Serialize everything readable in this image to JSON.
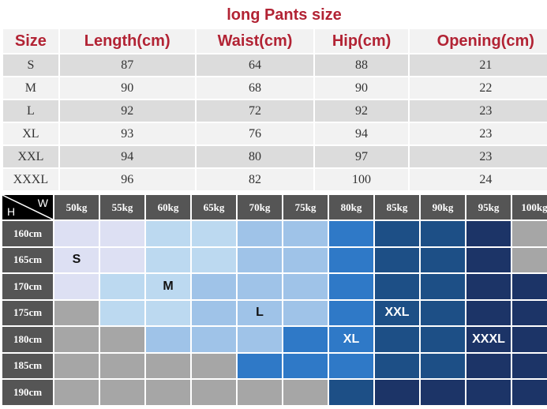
{
  "title": "long Pants size",
  "spec_table": {
    "headers": [
      "Size",
      "Length(cm)",
      "Waist(cm)",
      "Hip(cm)",
      "Opening(cm)"
    ],
    "rows": [
      [
        "S",
        "87",
        "64",
        "88",
        "21"
      ],
      [
        "M",
        "90",
        "68",
        "90",
        "22"
      ],
      [
        "L",
        "92",
        "72",
        "92",
        "23"
      ],
      [
        "XL",
        "93",
        "76",
        "94",
        "23"
      ],
      [
        "XXL",
        "94",
        "80",
        "97",
        "23"
      ],
      [
        "XXXL",
        "96",
        "82",
        "100",
        "24"
      ]
    ]
  },
  "fit_grid": {
    "corner_height_label": "H",
    "corner_weight_label": "W",
    "weights": [
      "50kg",
      "55kg",
      "60kg",
      "65kg",
      "70kg",
      "75kg",
      "80kg",
      "85kg",
      "90kg",
      "95kg",
      "100kg"
    ],
    "heights": [
      "160cm",
      "165cm",
      "170cm",
      "175cm",
      "180cm",
      "185cm",
      "190cm"
    ],
    "colors": {
      "a": "#dde0f3",
      "b": "#bcd9f0",
      "c": "#9fc3e8",
      "d": "#2f79c7",
      "e": "#1d4f86",
      "f": "#1c3467",
      "g": "#a6a6a6"
    },
    "cells": [
      "aabbccdeefg",
      "aabbccdeefg",
      "abbcccdeeff",
      "gbbcccdeeff",
      "ggcccddeeff",
      "ggggdddeeff",
      "ggggggeffff"
    ],
    "labels": [
      {
        "row": 1,
        "col": 0,
        "text": "S",
        "color": "#111"
      },
      {
        "row": 2,
        "col": 2,
        "text": "M",
        "color": "#111"
      },
      {
        "row": 3,
        "col": 4,
        "text": "L",
        "color": "#111"
      },
      {
        "row": 3,
        "col": 7,
        "text": "XXL",
        "color": "#ffffff"
      },
      {
        "row": 4,
        "col": 6,
        "text": "XL",
        "color": "#ffffff"
      },
      {
        "row": 4,
        "col": 9,
        "text": "XXXL",
        "color": "#ffffff"
      }
    ]
  }
}
